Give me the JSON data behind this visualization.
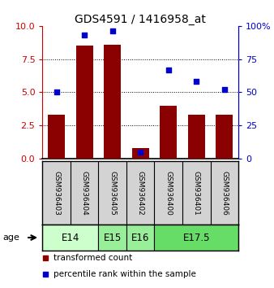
{
  "title": "GDS4591 / 1416958_at",
  "samples": [
    "GSM936403",
    "GSM936404",
    "GSM936405",
    "GSM936402",
    "GSM936400",
    "GSM936401",
    "GSM936406"
  ],
  "transformed_count": [
    3.3,
    8.5,
    8.6,
    0.8,
    4.0,
    3.3,
    3.3
  ],
  "percentile_rank": [
    50,
    93,
    96,
    5,
    67,
    58,
    52
  ],
  "bar_color": "#8B0000",
  "dot_color": "#0000CD",
  "left_ylim": [
    0,
    10
  ],
  "right_ylim": [
    0,
    100
  ],
  "left_yticks": [
    0,
    2.5,
    5,
    7.5,
    10
  ],
  "right_yticks": [
    0,
    25,
    50,
    75,
    100
  ],
  "right_yticklabels": [
    "0",
    "25",
    "50",
    "75",
    "100%"
  ],
  "dotted_lines": [
    2.5,
    5.0,
    7.5
  ],
  "age_groups": [
    {
      "label": "E14",
      "cols": [
        0,
        1
      ],
      "color": "#ccffcc"
    },
    {
      "label": "E15",
      "cols": [
        2
      ],
      "color": "#99ee99"
    },
    {
      "label": "E16",
      "cols": [
        3
      ],
      "color": "#99ee99"
    },
    {
      "label": "E17.5",
      "cols": [
        4,
        5,
        6
      ],
      "color": "#66dd66"
    }
  ],
  "left_tick_color": "#CC0000",
  "right_tick_color": "#0000CD",
  "tick_fontsize": 8,
  "title_fontsize": 10,
  "age_fontsize": 8.5,
  "sample_fontsize": 6.5,
  "legend_fontsize": 7.5
}
